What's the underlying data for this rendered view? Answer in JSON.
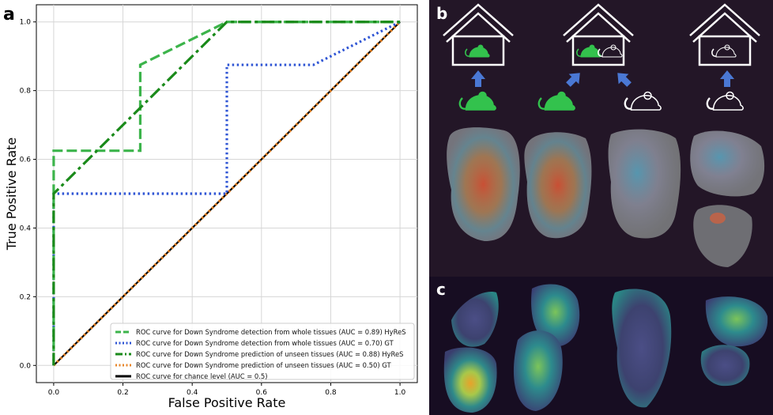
{
  "panel_labels": {
    "a": "a",
    "b": "b",
    "c": "c"
  },
  "chart_data": {
    "type": "line",
    "title": "",
    "xlabel": "False Positive Rate",
    "ylabel": "True Positive Rate",
    "xlim": [
      -0.05,
      1.05
    ],
    "ylim": [
      -0.05,
      1.05
    ],
    "grid": true,
    "xticks": [
      0.0,
      0.2,
      0.4,
      0.6,
      0.8,
      1.0
    ],
    "yticks": [
      0.0,
      0.2,
      0.4,
      0.6,
      0.8,
      1.0
    ],
    "xtick_labels": [
      "0.0",
      "0.2",
      "0.4",
      "0.6",
      "0.8",
      "1.0"
    ],
    "ytick_labels": [
      "0.0",
      "0.2",
      "0.4",
      "0.6",
      "0.8",
      "1.0"
    ],
    "legend_position": "lower-right",
    "series": [
      {
        "name": "ROC curve for Down Syndrome detection from whole tissues (AUC = 0.89) HyReS",
        "color": "#3cb44b",
        "style": "dashed",
        "points": [
          [
            0,
            0
          ],
          [
            0,
            0.625
          ],
          [
            0.25,
            0.625
          ],
          [
            0.25,
            0.875
          ],
          [
            0.5,
            1.0
          ],
          [
            1.0,
            1.0
          ]
        ]
      },
      {
        "name": "ROC curve for Down Syndrome detection from whole tissues (AUC = 0.70) GT",
        "color": "#2f55d4",
        "style": "dotted",
        "points": [
          [
            0,
            0
          ],
          [
            0,
            0.5
          ],
          [
            0.5,
            0.5
          ],
          [
            0.5,
            0.875
          ],
          [
            0.75,
            0.875
          ],
          [
            1.0,
            1.0
          ]
        ]
      },
      {
        "name": "ROC curve for Down Syndrome prediction of unseen tissues (AUC = 0.88) HyReS",
        "color": "#1a8a1a",
        "style": "dashdot",
        "points": [
          [
            0,
            0
          ],
          [
            0,
            0.5
          ],
          [
            0.5,
            1.0
          ],
          [
            1.0,
            1.0
          ]
        ]
      },
      {
        "name": "ROC curve for Down Syndrome prediction of unseen tissues (AUC = 0.50) GT",
        "color": "#e8862a",
        "style": "dotted",
        "points": [
          [
            0,
            0
          ],
          [
            1.0,
            1.0
          ]
        ]
      },
      {
        "name": "ROC curve for chance level (AUC = 0.5)",
        "color": "#000000",
        "style": "solid",
        "points": [
          [
            0,
            0
          ],
          [
            1.0,
            1.0
          ]
        ]
      }
    ]
  },
  "panel_b": {
    "houses": [
      {
        "mice": [
          "green"
        ],
        "arrows": [
          "up"
        ]
      },
      {
        "mice": [
          "green",
          "white"
        ],
        "arrows": [
          "up-right",
          "up-left"
        ]
      },
      {
        "mice": [
          "white"
        ],
        "arrows": [
          "up"
        ]
      }
    ],
    "mouse_colors": {
      "green": "#33c24d",
      "white": "#ffffff"
    },
    "arrow_color": "#4a78d4",
    "row_mice": [
      "green",
      "green",
      "white",
      "white"
    ]
  }
}
